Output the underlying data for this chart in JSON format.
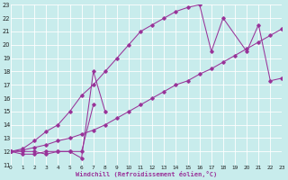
{
  "xlabel": "Windchill (Refroidissement éolien,°C)",
  "bg_color": "#c8ecec",
  "grid_color": "#aadddd",
  "line_color": "#993399",
  "xlim": [
    0,
    23
  ],
  "ylim": [
    11,
    23
  ],
  "xticks": [
    0,
    1,
    2,
    3,
    4,
    5,
    6,
    7,
    8,
    9,
    10,
    11,
    12,
    13,
    14,
    15,
    16,
    17,
    18,
    19,
    20,
    21,
    22,
    23
  ],
  "yticks": [
    11,
    12,
    13,
    14,
    15,
    16,
    17,
    18,
    19,
    20,
    21,
    22,
    23
  ],
  "line1_x": [
    0,
    1,
    2,
    3,
    4,
    5,
    6,
    7,
    8
  ],
  "line1_y": [
    12,
    12,
    12,
    11.8,
    12,
    12,
    11.5,
    18,
    15
  ],
  "line2_x": [
    0,
    1,
    2,
    3,
    4,
    5,
    6,
    7
  ],
  "line2_y": [
    12,
    11.8,
    11.8,
    12,
    12,
    12,
    12,
    15.5
  ],
  "line3_x": [
    0,
    1,
    2,
    3,
    4,
    5,
    6,
    7,
    8,
    9,
    10,
    11,
    12,
    13,
    14,
    15,
    16,
    17,
    18,
    20,
    21,
    22,
    23
  ],
  "line3_y": [
    12,
    12.2,
    12.8,
    13.5,
    14,
    15,
    16.2,
    17,
    18,
    19,
    20,
    21,
    21.5,
    22,
    22.5,
    22.8,
    23,
    19.5,
    22,
    19.5,
    21.5,
    17.3,
    17.5
  ],
  "line4_x": [
    0,
    1,
    2,
    3,
    4,
    5,
    6,
    7,
    8,
    9,
    10,
    11,
    12,
    13,
    14,
    15,
    16,
    17,
    18,
    19,
    20,
    21,
    22,
    23
  ],
  "line4_y": [
    12,
    12.1,
    12.3,
    12.5,
    12.8,
    13.0,
    13.3,
    13.6,
    14.0,
    14.5,
    15.0,
    15.5,
    16.0,
    16.5,
    17.0,
    17.3,
    17.8,
    18.2,
    18.7,
    19.2,
    19.7,
    20.2,
    20.7,
    21.2
  ]
}
